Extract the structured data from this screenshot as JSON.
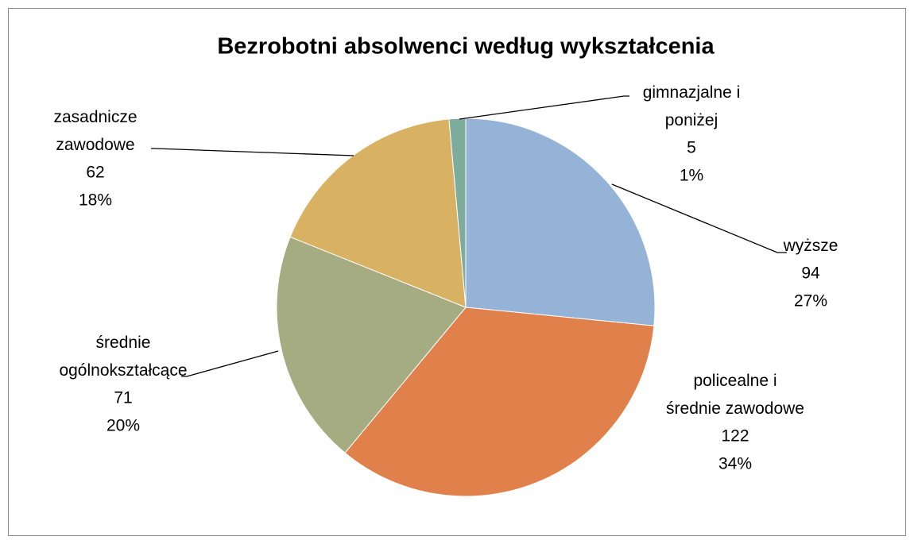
{
  "chart_data": {
    "type": "pie",
    "title": "Bezrobotni absolwenci według wykształcenia",
    "categories": [
      "wyższe",
      "policealne i średnie zawodowe",
      "średnie ogólnokształcące",
      "zasadnicze zawodowe",
      "gimnazjalne i poniżej"
    ],
    "values": [
      94,
      122,
      71,
      62,
      5
    ],
    "percent_labels": [
      "27%",
      "34%",
      "20%",
      "18%",
      "1%"
    ],
    "colors": [
      "#95b3d7",
      "#e0804a",
      "#a5ac81",
      "#d8b262",
      "#7eac9c"
    ]
  }
}
